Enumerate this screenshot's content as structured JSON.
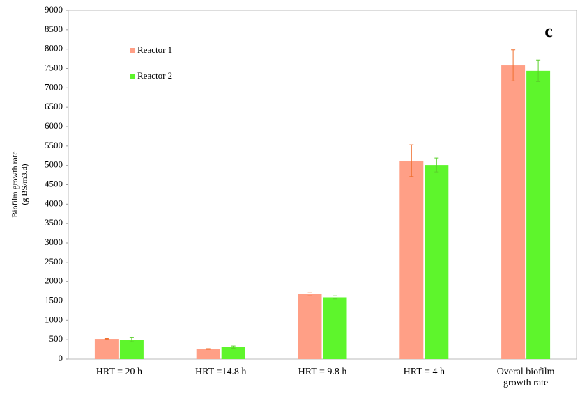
{
  "chart_data": {
    "type": "bar",
    "annotation": "c",
    "y_label": [
      "Biofilm  growth rate",
      "(g BS/m3.d)"
    ],
    "categories": [
      "HRT = 20 h",
      "HRT =14.8 h",
      "HRT = 9.8 h",
      "HRT = 4 h",
      "Overal biofilm growth rate"
    ],
    "series": [
      {
        "name": "Reactor 1",
        "color": "#ff9f86",
        "error_color": "#f07030",
        "values": [
          520,
          260,
          1680,
          5120,
          7580
        ],
        "errors": [
          10,
          10,
          50,
          410,
          400
        ]
      },
      {
        "name": "Reactor 2",
        "color": "#5ef52c",
        "error_color": "#5ad02a",
        "values": [
          500,
          310,
          1590,
          5010,
          7440
        ],
        "errors": [
          50,
          30,
          40,
          180,
          280
        ]
      }
    ],
    "ylim": [
      0,
      9000
    ],
    "yticks": [
      0,
      500,
      1000,
      1500,
      2000,
      2500,
      3000,
      3500,
      4000,
      4500,
      5000,
      5500,
      6000,
      6500,
      7000,
      7500,
      8000,
      8500,
      9000
    ],
    "grid": false,
    "legend": "top-left"
  }
}
